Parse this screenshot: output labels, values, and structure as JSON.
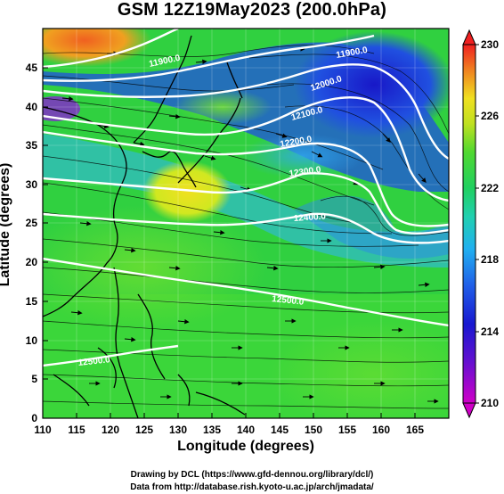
{
  "title": "GSM 12Z19May2023 (200.0hPa)",
  "xlabel": "Longitude (degrees)",
  "ylabel": "Latitude  (degrees)",
  "credits": [
    "Drawing by DCL (https://www.gfd-dennou.org/library/dcl/)",
    "Data from http://database.rish.kyoto-u.ac.jp/arch/jmadata/"
  ],
  "map": {
    "lon_range": [
      110,
      170
    ],
    "lat_range": [
      0,
      50
    ],
    "x_ticks": [
      "110",
      "115",
      "120",
      "125",
      "130",
      "135",
      "140",
      "145",
      "150",
      "155",
      "160",
      "165"
    ],
    "y_ticks": [
      "0",
      "5",
      "10",
      "15",
      "20",
      "25",
      "30",
      "35",
      "40",
      "45"
    ]
  },
  "colorbar": {
    "tick_labels": [
      "210",
      "214",
      "218",
      "222",
      "226",
      "230"
    ],
    "range": [
      210,
      230
    ],
    "colors": [
      "#d000c8",
      "#2030e0",
      "#20b0f0",
      "#20d860",
      "#e8e820",
      "#f04020"
    ]
  },
  "contours": {
    "labels": [
      "11900.0",
      "11900.0",
      "12000.0",
      "12100.0",
      "12200.0",
      "12300.0",
      "12400.0",
      "12500.0",
      "12500.0"
    ]
  }
}
